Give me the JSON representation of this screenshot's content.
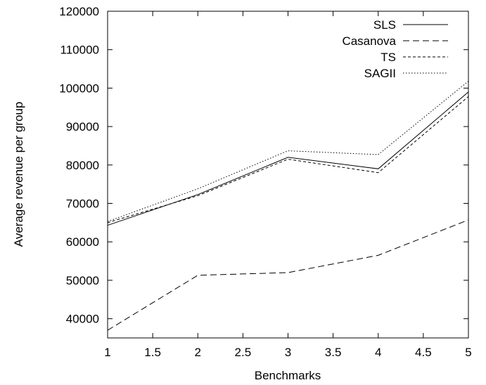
{
  "chart_data": {
    "type": "line",
    "title": "",
    "xlabel": "Benchmarks",
    "ylabel": "Average revenue per group",
    "xlim": [
      1,
      5
    ],
    "ylim": [
      35000,
      120000
    ],
    "xticks": [
      1,
      1.5,
      2,
      2.5,
      3,
      3.5,
      4,
      4.5,
      5
    ],
    "yticks": [
      40000,
      50000,
      60000,
      70000,
      80000,
      90000,
      100000,
      110000,
      120000
    ],
    "grid": false,
    "legend_position": "top-right",
    "x": [
      1,
      2,
      3,
      4,
      5
    ],
    "series": [
      {
        "name": "SLS",
        "values": [
          64300,
          72300,
          82000,
          79000,
          99000
        ],
        "dash": "solid"
      },
      {
        "name": "Casanova",
        "values": [
          37000,
          51300,
          52000,
          56500,
          65700
        ],
        "dash": "dashed"
      },
      {
        "name": "TS",
        "values": [
          65000,
          72000,
          81500,
          78000,
          97800
        ],
        "dash": "short-dashed"
      },
      {
        "name": "SAGII",
        "values": [
          65300,
          73800,
          83700,
          82700,
          101800
        ],
        "dash": "dotted"
      }
    ]
  }
}
